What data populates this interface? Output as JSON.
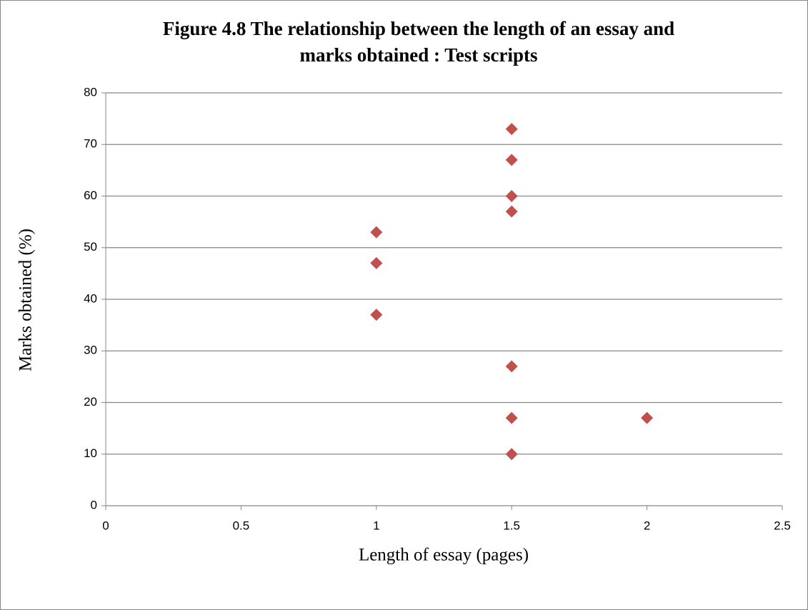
{
  "chart_data": {
    "type": "scatter",
    "title": [
      "Figure 4.8 The relationship between the length of an essay and",
      "marks obtained : Test scripts"
    ],
    "x_label": "Length of essay (pages)",
    "y_label": "Marks obtained (%)",
    "series": [
      {
        "color": "#c0504d",
        "x": [
          1,
          1,
          1,
          1.5,
          1.5,
          1.5,
          1.5,
          1.5,
          1.5,
          1.5,
          2
        ],
        "values": [
          53,
          47,
          37,
          73,
          67,
          60,
          57,
          27,
          17,
          10,
          17
        ]
      }
    ],
    "xlim": [
      0,
      2.5
    ],
    "xticks": [
      0,
      0.5,
      1,
      1.5,
      2,
      2.5
    ],
    "ylim": [
      0,
      80
    ],
    "yticks": [
      0,
      10,
      20,
      30,
      40,
      50,
      60,
      70,
      80
    ],
    "grid": true
  }
}
